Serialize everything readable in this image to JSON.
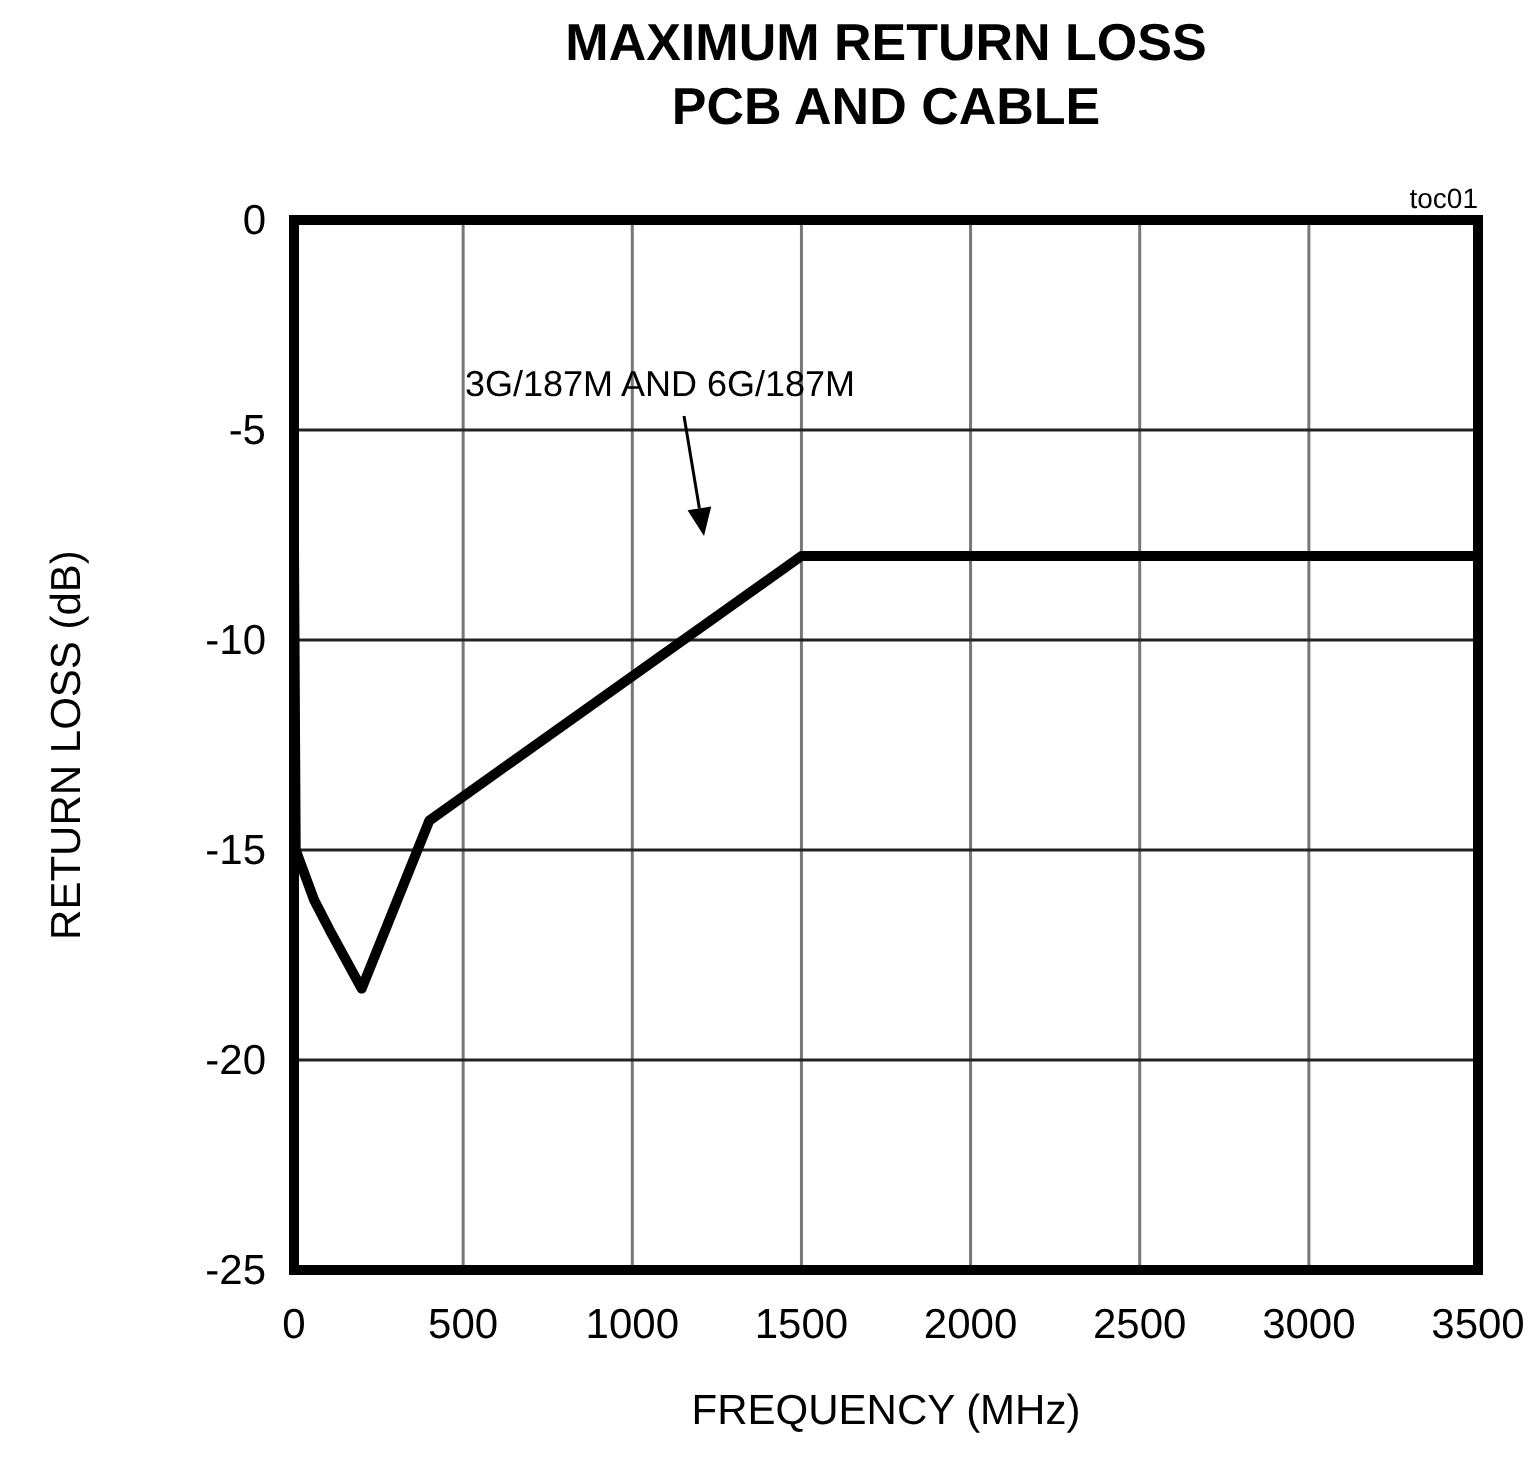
{
  "chart_data": {
    "type": "line",
    "title": "MAXIMUM RETURN LOSS\nPCB AND CABLE",
    "xlabel": "FREQUENCY (MHz)",
    "ylabel": "RETURN LOSS (dB)",
    "x": [
      0,
      5,
      60,
      105,
      200,
      400,
      1500,
      3500
    ],
    "series": [
      {
        "color": "#000000",
        "values": [
          -7.8,
          -15,
          -16.2,
          -16.9,
          -18.3,
          -14.3,
          -8,
          -8
        ]
      }
    ],
    "xlim": [
      0,
      3500
    ],
    "ylim": [
      -25,
      0
    ],
    "xticks": [
      0,
      500,
      1000,
      1500,
      2000,
      2500,
      3000,
      3500
    ],
    "yticks": [
      -25,
      -20,
      -15,
      -10,
      -5,
      0
    ],
    "grid": true,
    "marker": "none",
    "line_style": "solid",
    "annotations": [
      "3G/187M AND 6G/187M",
      "toc01"
    ]
  }
}
